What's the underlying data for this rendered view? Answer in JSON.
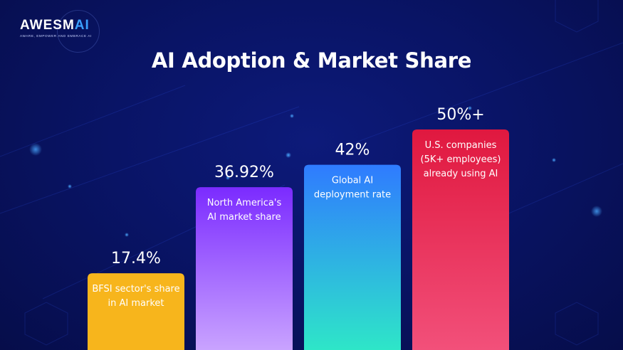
{
  "logo": {
    "wordmark_main": "AWESM",
    "wordmark_accent": "AI",
    "tagline": "AWARE, EMPOWER AND EMBRACE AI"
  },
  "colors": {
    "background": "#091466",
    "bar_gradients": [
      [
        "#f7b51c",
        "#f7b51c"
      ],
      [
        "#7b2bff",
        "#c9a3ff"
      ],
      [
        "#2f7bff",
        "#2ee6c8"
      ],
      [
        "#e0183f",
        "#f2507a"
      ]
    ]
  },
  "chart_data": {
    "type": "bar",
    "title": "AI Adoption & Market Share",
    "xlabel": "",
    "ylabel": "",
    "ylim": [
      0,
      55
    ],
    "grid": false,
    "legend": "none",
    "categories": [
      [
        "BFSI sector's share",
        "in AI market"
      ],
      [
        "North America's",
        "AI market share"
      ],
      [
        "Global AI",
        "deployment rate"
      ],
      [
        "U.S. companies",
        "(5K+ employees)",
        "already using AI"
      ]
    ],
    "values": [
      17.4,
      36.92,
      42,
      50
    ],
    "value_labels": [
      "17.4%",
      "36.92%",
      "42%",
      "50%+"
    ]
  }
}
